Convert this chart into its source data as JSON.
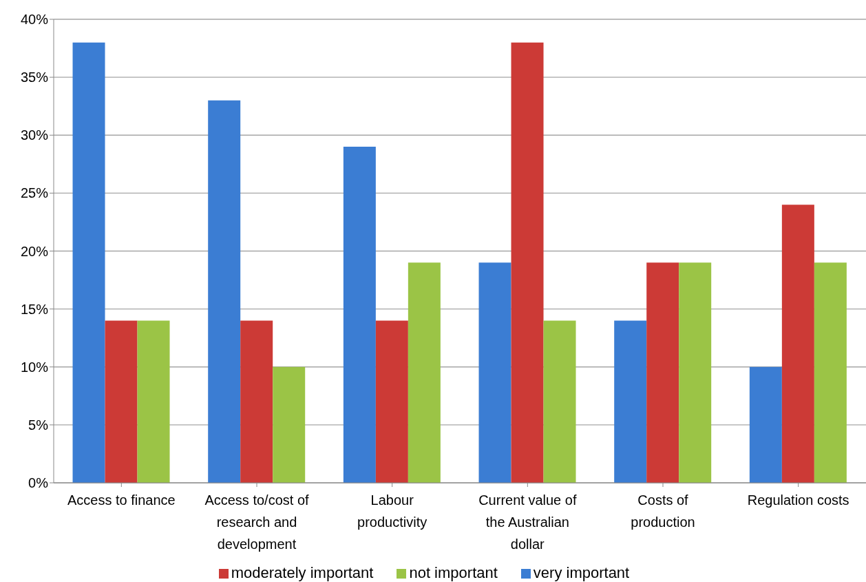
{
  "chart_data": {
    "type": "bar",
    "categories": [
      "Access to finance",
      "Access to/cost of research and development",
      "Labour productivity",
      "Current value of the Australian dollar",
      "Costs of production",
      "Regulation costs"
    ],
    "series": [
      {
        "name": "very important",
        "color": "#3b7dd3",
        "values": [
          38,
          33,
          29,
          19,
          14,
          10
        ]
      },
      {
        "name": "moderately important",
        "color": "#cc3a36",
        "values": [
          14,
          14,
          14,
          38,
          19,
          24
        ]
      },
      {
        "name": "not important",
        "color": "#9bc446",
        "values": [
          14,
          10,
          19,
          14,
          19,
          19
        ]
      }
    ],
    "ylim": [
      0,
      40
    ],
    "yticks": [
      {
        "value": 0,
        "label": "0%"
      },
      {
        "value": 5,
        "label": "5%"
      },
      {
        "value": 10,
        "label": "10%"
      },
      {
        "value": 15,
        "label": "15%"
      },
      {
        "value": 20,
        "label": "20%"
      },
      {
        "value": 25,
        "label": "25%"
      },
      {
        "value": 30,
        "label": "30%"
      },
      {
        "value": 35,
        "label": "35%"
      },
      {
        "value": 40,
        "label": "40%"
      }
    ],
    "grid": "y",
    "legend": "bottom"
  }
}
